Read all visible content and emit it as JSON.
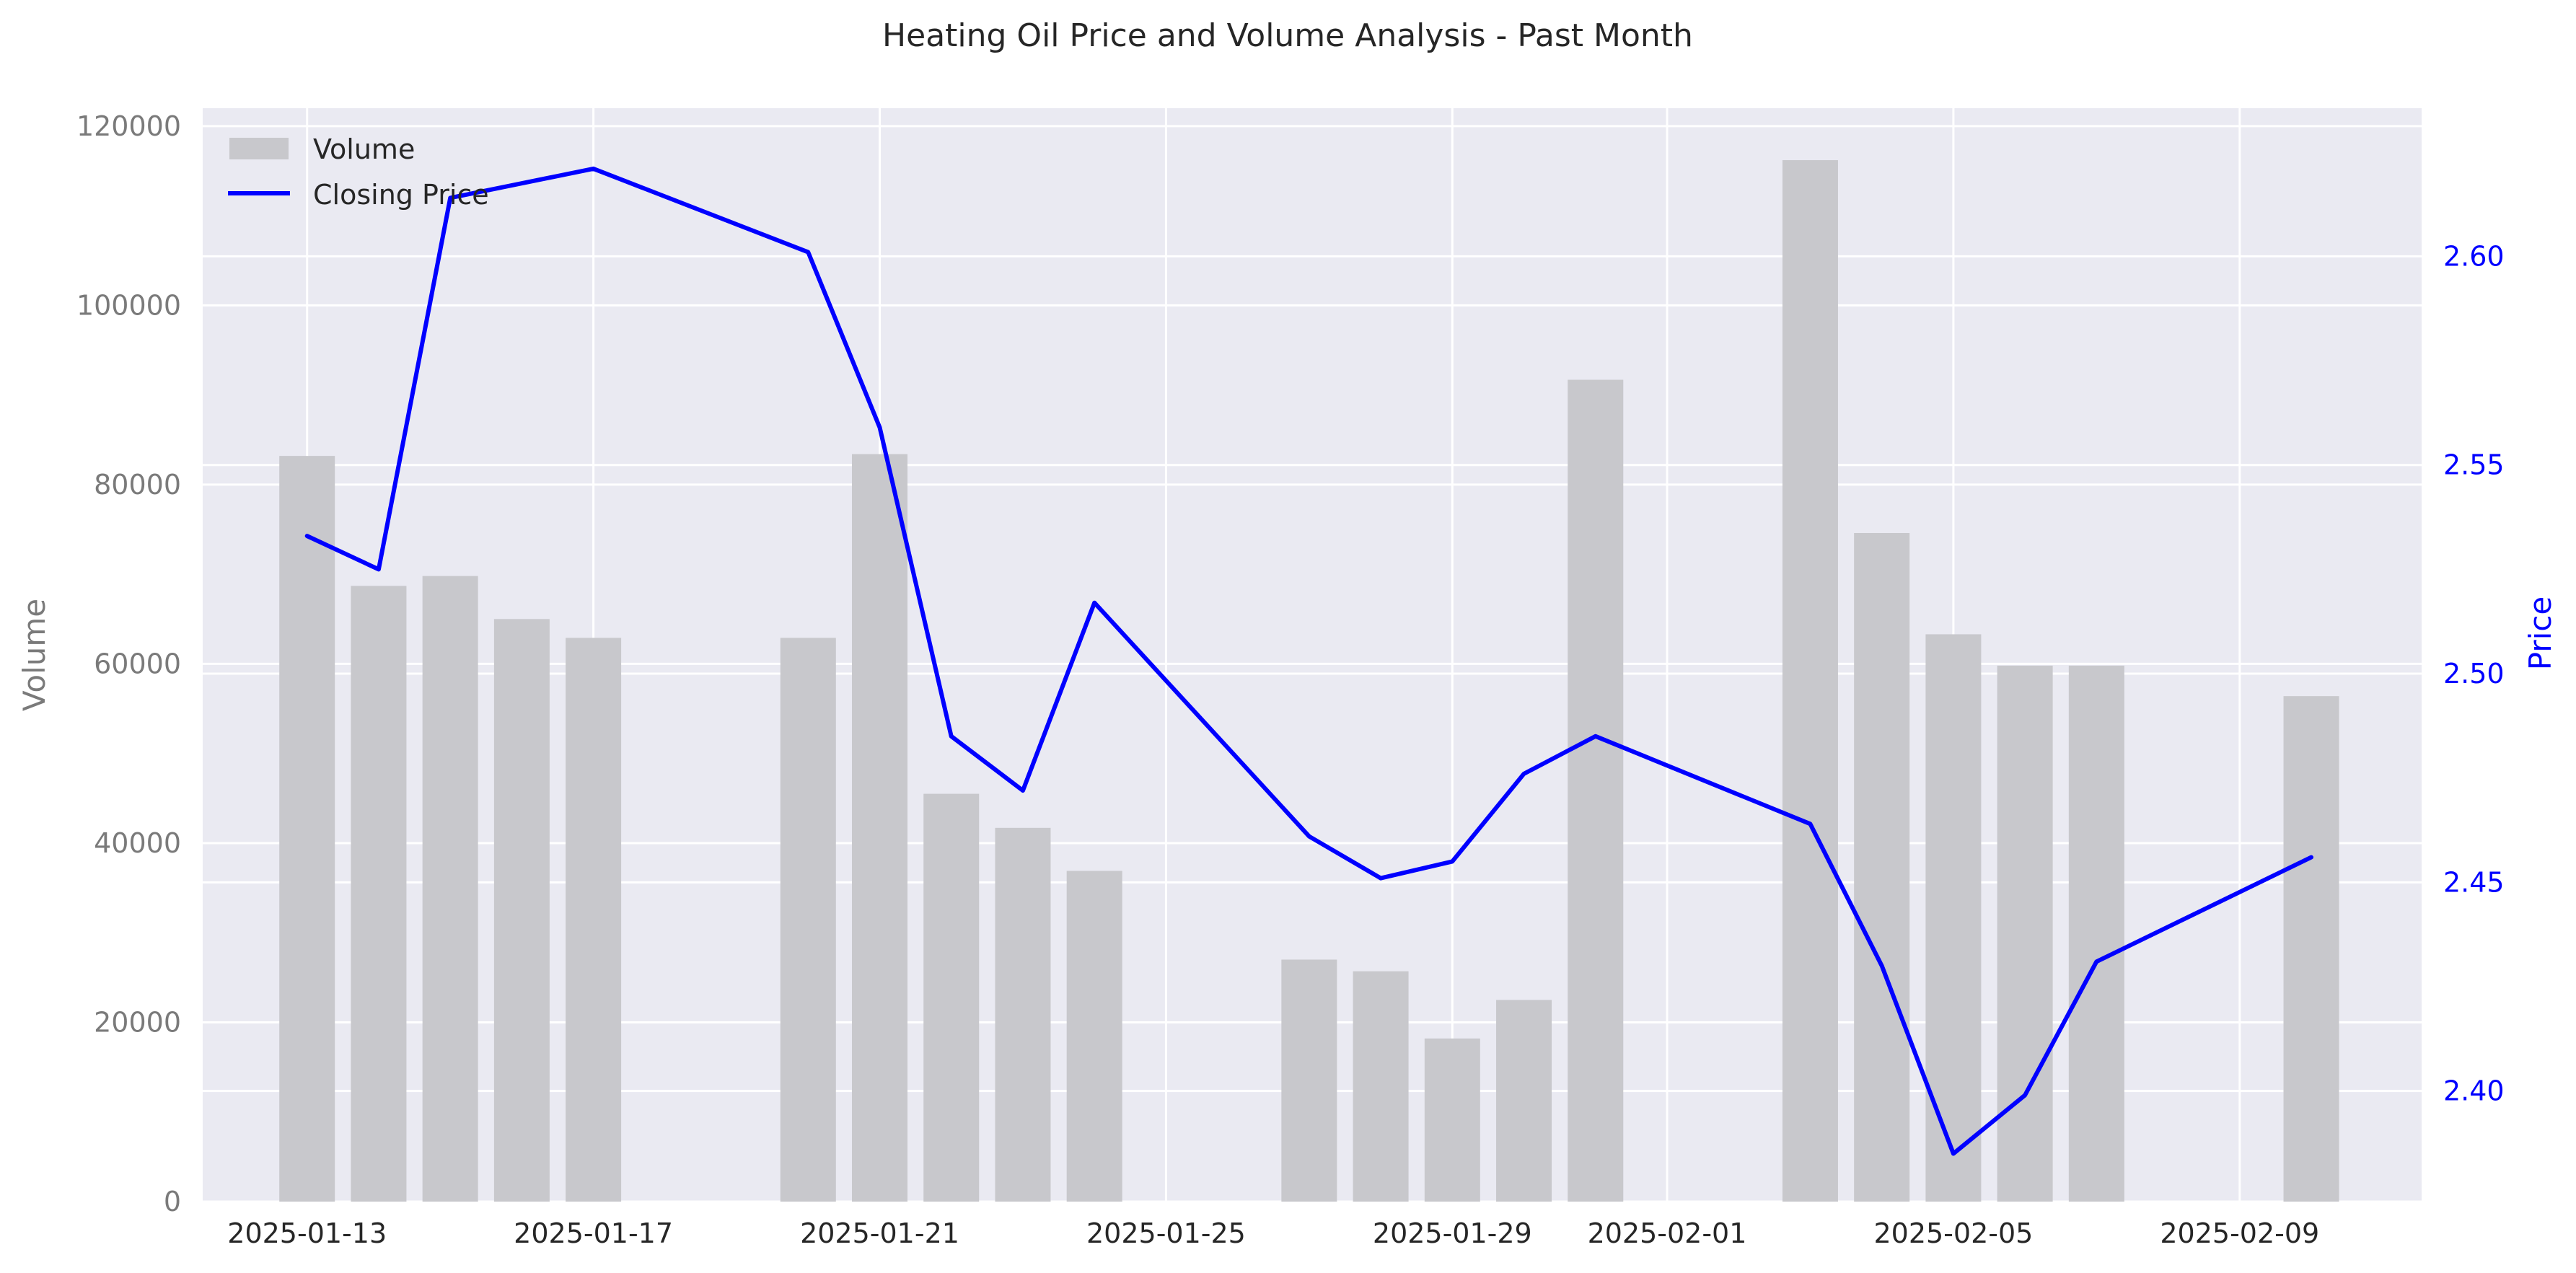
{
  "chart_data": {
    "type": "bar+line",
    "title": "Heating Oil Price and Volume Analysis - Past Month",
    "x_axis": {
      "type": "date",
      "range": [
        "2025-01-11T13:00",
        "2025-02-11T13:00"
      ],
      "tick_dates": [
        "2025-01-13",
        "2025-01-17",
        "2025-01-21",
        "2025-01-25",
        "2025-01-29",
        "2025-02-01",
        "2025-02-05",
        "2025-02-09"
      ]
    },
    "y_left": {
      "label": "Volume",
      "range": [
        0,
        122000
      ],
      "ticks": [
        0,
        20000,
        40000,
        60000,
        80000,
        100000,
        120000
      ]
    },
    "y_right": {
      "label": "Price",
      "range": [
        2.3735,
        2.6355
      ],
      "ticks": [
        2.4,
        2.45,
        2.5,
        2.55,
        2.6
      ],
      "tick_labels": [
        "2.40",
        "2.45",
        "2.50",
        "2.55",
        "2.60"
      ]
    },
    "legend": {
      "position": "top-left",
      "entries": [
        {
          "name": "Volume",
          "kind": "bar"
        },
        {
          "name": "Closing Price",
          "kind": "line"
        }
      ]
    },
    "series": [
      {
        "name": "Volume",
        "type": "bar",
        "axis": "left",
        "color": "#c8c8cc",
        "dates": [
          "2025-01-13",
          "2025-01-14",
          "2025-01-15",
          "2025-01-16",
          "2025-01-17",
          "2025-01-20",
          "2025-01-21",
          "2025-01-22",
          "2025-01-23",
          "2025-01-24",
          "2025-01-27",
          "2025-01-28",
          "2025-01-29",
          "2025-01-30",
          "2025-01-31",
          "2025-02-03",
          "2025-02-04",
          "2025-02-05",
          "2025-02-06",
          "2025-02-07",
          "2025-02-10"
        ],
        "values": [
          83200,
          68700,
          69800,
          65000,
          62900,
          62900,
          83400,
          45500,
          41700,
          36900,
          27000,
          25700,
          18200,
          22500,
          91700,
          116200,
          74600,
          63300,
          59800,
          59800,
          56400
        ]
      },
      {
        "name": "Closing Price",
        "type": "line",
        "axis": "right",
        "color": "#0000ff",
        "dates": [
          "2025-01-13",
          "2025-01-14",
          "2025-01-15",
          "2025-01-17",
          "2025-01-20",
          "2025-01-21",
          "2025-01-22",
          "2025-01-23",
          "2025-01-24",
          "2025-01-27",
          "2025-01-28",
          "2025-01-29",
          "2025-01-30",
          "2025-01-31",
          "2025-02-03",
          "2025-02-04",
          "2025-02-05",
          "2025-02-06",
          "2025-02-07",
          "2025-02-10"
        ],
        "values": [
          2.533,
          2.525,
          2.614,
          2.621,
          2.601,
          2.559,
          2.485,
          2.472,
          2.517,
          2.461,
          2.451,
          2.455,
          2.476,
          2.485,
          2.464,
          2.43,
          2.385,
          2.399,
          2.431,
          2.456
        ]
      }
    ]
  }
}
